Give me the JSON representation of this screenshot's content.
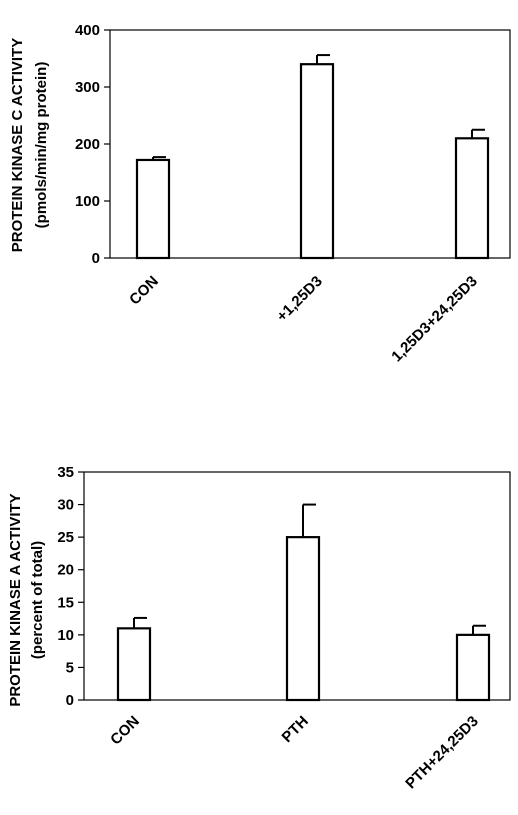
{
  "chart_data": [
    {
      "type": "bar",
      "categories": [
        "CON",
        "+1,25D3",
        "1,25D3+24,25D3"
      ],
      "values": [
        172,
        340,
        210
      ],
      "errors": [
        5,
        16,
        15
      ],
      "ylim": [
        0,
        400
      ],
      "yticks": [
        "0",
        "100",
        "200",
        "300",
        "400"
      ],
      "ylabel": "PROTEIN KINASE C ACTIVITY",
      "ylabel_units": "(pmols/min/mg protein)",
      "grid": false
    },
    {
      "type": "bar",
      "categories": [
        "CON",
        "PTH",
        "PTH+24,25D3"
      ],
      "values": [
        11,
        25,
        10
      ],
      "errors": [
        1.6,
        5,
        1.4
      ],
      "ylim": [
        0,
        35
      ],
      "yticks": [
        "0",
        "5",
        "10",
        "15",
        "20",
        "25",
        "30",
        "35"
      ],
      "ylabel": "PROTEIN KINASE A ACTIVITY",
      "ylabel_units": "(percent of total)",
      "grid": false
    }
  ]
}
